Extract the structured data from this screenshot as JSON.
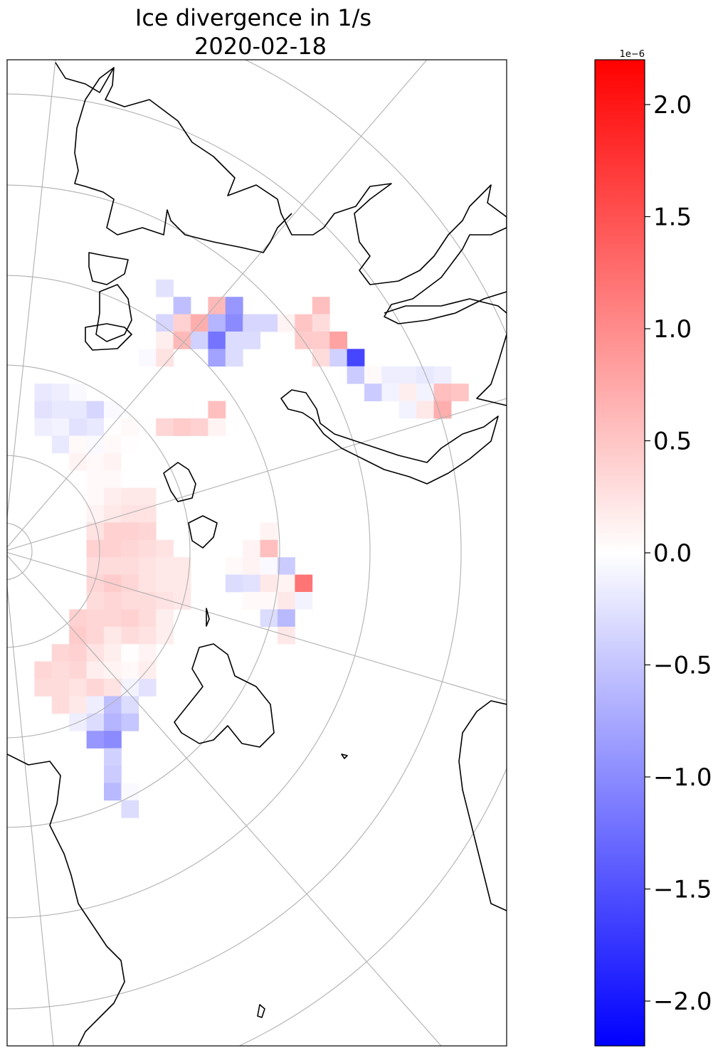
{
  "chart_data": {
    "type": "heatmap",
    "title": "Ice divergence in 1/s",
    "subtitle": "2020-02-18",
    "colormap": "bwr",
    "colormap_colors": {
      "min": "#0000ff",
      "mid": "#ffffff",
      "max": "#ff0000"
    },
    "value_range": [
      -2.2e-06,
      2.2e-06
    ],
    "colorbar": {
      "offset_label": "1e−6",
      "ticks": [
        2.0,
        1.5,
        1.0,
        0.5,
        0.0,
        -0.5,
        -1.0,
        -1.5,
        -2.0
      ],
      "tick_labels": [
        "2.0",
        "1.5",
        "1.0",
        "0.5",
        "0.0",
        "−0.5",
        "−1.0",
        "−1.5",
        "−2.0"
      ]
    },
    "grid_unit_note": "cells listed as [column, row, value in 1e-6 1/s] on the projected map grid",
    "cells": [
      [
        8,
        12,
        -0.25
      ],
      [
        9,
        13,
        -0.55
      ],
      [
        11,
        13,
        0.6
      ],
      [
        12,
        13,
        -0.9
      ],
      [
        17,
        13,
        0.55
      ],
      [
        8,
        14,
        -0.35
      ],
      [
        9,
        14,
        0.4
      ],
      [
        10,
        14,
        0.7
      ],
      [
        11,
        14,
        -0.65
      ],
      [
        12,
        14,
        -1.0
      ],
      [
        13,
        14,
        -0.35
      ],
      [
        14,
        14,
        -0.35
      ],
      [
        15,
        14,
        0.1
      ],
      [
        16,
        14,
        0.5
      ],
      [
        17,
        14,
        0.3
      ],
      [
        8,
        15,
        0.15
      ],
      [
        9,
        15,
        0.6
      ],
      [
        10,
        15,
        -0.4
      ],
      [
        11,
        15,
        -1.2
      ],
      [
        12,
        15,
        -0.3
      ],
      [
        13,
        15,
        -0.3
      ],
      [
        16,
        15,
        0.45
      ],
      [
        17,
        15,
        0.45
      ],
      [
        18,
        15,
        0.8
      ],
      [
        7,
        16,
        -0.05
      ],
      [
        8,
        16,
        0.25
      ],
      [
        11,
        16,
        -0.8
      ],
      [
        12,
        16,
        -0.3
      ],
      [
        17,
        16,
        0.3
      ],
      [
        18,
        16,
        -0.4
      ],
      [
        19,
        16,
        -1.6
      ],
      [
        19,
        17,
        -0.45
      ],
      [
        20,
        17,
        0.05
      ],
      [
        21,
        17,
        -0.15
      ],
      [
        22,
        17,
        -0.15
      ],
      [
        23,
        17,
        -0.2
      ],
      [
        24,
        17,
        -0.15
      ],
      [
        1,
        18,
        -0.2
      ],
      [
        2,
        18,
        -0.15
      ],
      [
        3,
        18,
        -0.05
      ],
      [
        20,
        18,
        -0.45
      ],
      [
        21,
        18,
        -0.1
      ],
      [
        22,
        18,
        0.15
      ],
      [
        23,
        18,
        -0.1
      ],
      [
        24,
        18,
        0.55
      ],
      [
        25,
        18,
        0.5
      ],
      [
        1,
        19,
        -0.25
      ],
      [
        2,
        19,
        -0.2
      ],
      [
        3,
        19,
        -0.2
      ],
      [
        4,
        19,
        -0.35
      ],
      [
        5,
        19,
        -0.05
      ],
      [
        11,
        19,
        0.55
      ],
      [
        22,
        19,
        -0.1
      ],
      [
        23,
        19,
        0.2
      ],
      [
        24,
        19,
        0.7
      ],
      [
        1,
        20,
        -0.15
      ],
      [
        2,
        20,
        -0.1
      ],
      [
        3,
        20,
        -0.25
      ],
      [
        4,
        20,
        -0.2
      ],
      [
        5,
        20,
        0.02
      ],
      [
        6,
        20,
        0.05
      ],
      [
        8,
        20,
        0.35
      ],
      [
        9,
        20,
        0.45
      ],
      [
        10,
        20,
        0.4
      ],
      [
        11,
        20,
        0.1
      ],
      [
        2,
        21,
        -0.2
      ],
      [
        3,
        21,
        0.05
      ],
      [
        4,
        21,
        -0.05
      ],
      [
        5,
        21,
        0.05
      ],
      [
        6,
        21,
        0.02
      ],
      [
        3,
        22,
        0.1
      ],
      [
        4,
        22,
        0.05
      ],
      [
        5,
        22,
        0.1
      ],
      [
        4,
        23,
        0.05
      ],
      [
        5,
        23,
        0.05
      ],
      [
        4,
        24,
        0.05
      ],
      [
        5,
        24,
        0.15
      ],
      [
        6,
        24,
        0.2
      ],
      [
        7,
        24,
        0.2
      ],
      [
        4,
        25,
        0.1
      ],
      [
        5,
        25,
        0.2
      ],
      [
        6,
        25,
        0.25
      ],
      [
        7,
        25,
        0.25
      ],
      [
        4,
        26,
        0.25
      ],
      [
        5,
        26,
        0.4
      ],
      [
        6,
        26,
        0.4
      ],
      [
        7,
        26,
        0.35
      ],
      [
        14,
        26,
        0.1
      ],
      [
        4,
        27,
        0.4
      ],
      [
        5,
        27,
        0.4
      ],
      [
        6,
        27,
        0.35
      ],
      [
        7,
        27,
        0.3
      ],
      [
        8,
        27,
        0.25
      ],
      [
        13,
        27,
        0.1
      ],
      [
        14,
        27,
        0.55
      ],
      [
        4,
        28,
        0.3
      ],
      [
        5,
        28,
        0.3
      ],
      [
        6,
        28,
        0.3
      ],
      [
        7,
        28,
        0.25
      ],
      [
        8,
        28,
        0.2
      ],
      [
        9,
        28,
        0.2
      ],
      [
        12,
        28,
        0.05
      ],
      [
        13,
        28,
        0.1
      ],
      [
        14,
        28,
        -0.05
      ],
      [
        15,
        28,
        -0.45
      ],
      [
        4,
        29,
        0.35
      ],
      [
        5,
        29,
        0.45
      ],
      [
        6,
        29,
        0.35
      ],
      [
        7,
        29,
        0.25
      ],
      [
        8,
        29,
        0.2
      ],
      [
        9,
        29,
        0.2
      ],
      [
        12,
        29,
        -0.3
      ],
      [
        13,
        29,
        -0.25
      ],
      [
        14,
        29,
        0.2
      ],
      [
        15,
        29,
        0.1
      ],
      [
        16,
        29,
        1.2
      ],
      [
        4,
        30,
        0.3
      ],
      [
        5,
        30,
        0.35
      ],
      [
        6,
        30,
        0.3
      ],
      [
        7,
        30,
        0.3
      ],
      [
        8,
        30,
        0.25
      ],
      [
        9,
        30,
        0.2
      ],
      [
        13,
        30,
        0.05
      ],
      [
        14,
        30,
        0.05
      ],
      [
        15,
        30,
        0.2
      ],
      [
        16,
        30,
        -0.1
      ],
      [
        3,
        31,
        0.4
      ],
      [
        4,
        31,
        0.35
      ],
      [
        5,
        31,
        0.35
      ],
      [
        6,
        31,
        0.4
      ],
      [
        7,
        31,
        0.3
      ],
      [
        8,
        31,
        0.15
      ],
      [
        14,
        31,
        -0.3
      ],
      [
        15,
        31,
        -0.6
      ],
      [
        3,
        32,
        0.45
      ],
      [
        4,
        32,
        0.35
      ],
      [
        5,
        32,
        0.2
      ],
      [
        6,
        32,
        0.3
      ],
      [
        7,
        32,
        0.25
      ],
      [
        8,
        32,
        0.15
      ],
      [
        15,
        32,
        0.2
      ],
      [
        2,
        33,
        0.35
      ],
      [
        3,
        33,
        0.4
      ],
      [
        4,
        33,
        0.25
      ],
      [
        5,
        33,
        0.15
      ],
      [
        6,
        33,
        0.02
      ],
      [
        7,
        33,
        0.1
      ],
      [
        1,
        34,
        0.35
      ],
      [
        2,
        34,
        0.3
      ],
      [
        3,
        34,
        0.35
      ],
      [
        4,
        34,
        0.15
      ],
      [
        5,
        34,
        0.1
      ],
      [
        6,
        34,
        0.05
      ],
      [
        7,
        34,
        0.15
      ],
      [
        1,
        35,
        0.3
      ],
      [
        2,
        35,
        0.3
      ],
      [
        3,
        35,
        0.25
      ],
      [
        4,
        35,
        0.35
      ],
      [
        5,
        35,
        0.25
      ],
      [
        6,
        35,
        -0.1
      ],
      [
        7,
        35,
        -0.25
      ],
      [
        2,
        36,
        0.3
      ],
      [
        3,
        36,
        0.2
      ],
      [
        4,
        36,
        -0.15
      ],
      [
        5,
        36,
        -0.55
      ],
      [
        6,
        36,
        -0.3
      ],
      [
        3,
        37,
        -0.15
      ],
      [
        4,
        37,
        -0.3
      ],
      [
        5,
        37,
        -0.65
      ],
      [
        6,
        37,
        -0.5
      ],
      [
        4,
        38,
        -0.9
      ],
      [
        5,
        38,
        -1.0
      ],
      [
        5,
        39,
        -0.4
      ],
      [
        5,
        40,
        -0.45
      ],
      [
        5,
        41,
        -0.6
      ],
      [
        6,
        41,
        -0.05
      ],
      [
        6,
        42,
        -0.3
      ]
    ]
  }
}
